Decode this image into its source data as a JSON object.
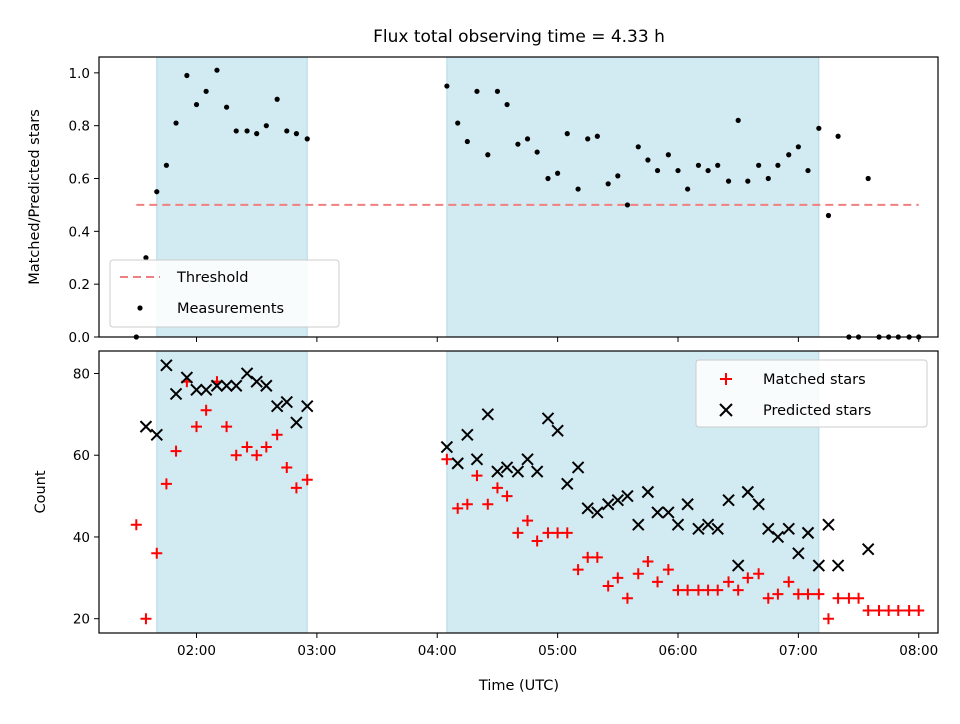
{
  "chart_data": {
    "title": "Flux total observing time = 4.33 h",
    "xlabel": "Time (UTC)",
    "x_ticks": [
      "02:00",
      "03:00",
      "04:00",
      "05:00",
      "06:00",
      "07:00",
      "08:00"
    ],
    "x_units": "hours UTC",
    "xlim": [
      1.19,
      8.16
    ],
    "observing_windows": [
      [
        1.67,
        2.92
      ],
      [
        4.08,
        7.17
      ]
    ],
    "window_color": "#add8e6",
    "panels": [
      {
        "type": "scatter",
        "ylabel": "Matched/Predicted stars",
        "ylim": [
          0.0,
          1.06
        ],
        "y_ticks": [
          0.0,
          0.2,
          0.4,
          0.6,
          0.8,
          1.0
        ],
        "y_tick_labels": [
          "0.0",
          "0.2",
          "0.4",
          "0.6",
          "0.8",
          "1.0"
        ],
        "threshold": {
          "name": "Threshold",
          "y": 0.5,
          "x_range": [
            1.5,
            8.0
          ],
          "color": "#f08080"
        },
        "series": [
          {
            "name": "Measurements",
            "color": "#000000",
            "marker": "dot",
            "points": [
              [
                1.5,
                0.0
              ],
              [
                1.58,
                0.3
              ],
              [
                1.67,
                0.55
              ],
              [
                1.75,
                0.65
              ],
              [
                1.83,
                0.81
              ],
              [
                1.92,
                0.99
              ],
              [
                2.0,
                0.88
              ],
              [
                2.08,
                0.93
              ],
              [
                2.17,
                1.01
              ],
              [
                2.25,
                0.87
              ],
              [
                2.33,
                0.78
              ],
              [
                2.42,
                0.78
              ],
              [
                2.5,
                0.77
              ],
              [
                2.58,
                0.8
              ],
              [
                2.67,
                0.9
              ],
              [
                2.75,
                0.78
              ],
              [
                2.83,
                0.77
              ],
              [
                2.92,
                0.75
              ],
              [
                4.08,
                0.95
              ],
              [
                4.17,
                0.81
              ],
              [
                4.25,
                0.74
              ],
              [
                4.33,
                0.93
              ],
              [
                4.42,
                0.69
              ],
              [
                4.5,
                0.93
              ],
              [
                4.58,
                0.88
              ],
              [
                4.67,
                0.73
              ],
              [
                4.75,
                0.75
              ],
              [
                4.83,
                0.7
              ],
              [
                4.92,
                0.6
              ],
              [
                5.0,
                0.62
              ],
              [
                5.08,
                0.77
              ],
              [
                5.17,
                0.56
              ],
              [
                5.25,
                0.75
              ],
              [
                5.33,
                0.76
              ],
              [
                5.42,
                0.58
              ],
              [
                5.5,
                0.61
              ],
              [
                5.58,
                0.5
              ],
              [
                5.67,
                0.72
              ],
              [
                5.75,
                0.67
              ],
              [
                5.83,
                0.63
              ],
              [
                5.92,
                0.69
              ],
              [
                6.0,
                0.63
              ],
              [
                6.08,
                0.56
              ],
              [
                6.17,
                0.65
              ],
              [
                6.25,
                0.63
              ],
              [
                6.33,
                0.65
              ],
              [
                6.42,
                0.59
              ],
              [
                6.5,
                0.82
              ],
              [
                6.58,
                0.59
              ],
              [
                6.67,
                0.65
              ],
              [
                6.75,
                0.6
              ],
              [
                6.83,
                0.65
              ],
              [
                6.92,
                0.69
              ],
              [
                7.0,
                0.72
              ],
              [
                7.08,
                0.63
              ],
              [
                7.17,
                0.79
              ],
              [
                7.25,
                0.46
              ],
              [
                7.33,
                0.76
              ],
              [
                7.42,
                0.0
              ],
              [
                7.5,
                0.0
              ],
              [
                7.58,
                0.6
              ],
              [
                7.67,
                0.0
              ],
              [
                7.75,
                0.0
              ],
              [
                7.83,
                0.0
              ],
              [
                7.92,
                0.0
              ],
              [
                8.0,
                0.0
              ]
            ]
          }
        ],
        "legend": {
          "placement": "lower-left",
          "entries": [
            "Threshold",
            "Measurements"
          ]
        }
      },
      {
        "type": "scatter",
        "ylabel": "Count",
        "ylim": [
          16.5,
          85.5
        ],
        "y_ticks": [
          20,
          40,
          60,
          80
        ],
        "y_tick_labels": [
          "20",
          "40",
          "60",
          "80"
        ],
        "series": [
          {
            "name": "Matched stars",
            "color": "#ff0000",
            "marker": "plus",
            "points": [
              [
                1.5,
                43
              ],
              [
                1.58,
                20
              ],
              [
                1.67,
                36
              ],
              [
                1.75,
                53
              ],
              [
                1.83,
                61
              ],
              [
                1.92,
                78
              ],
              [
                2.0,
                67
              ],
              [
                2.08,
                71
              ],
              [
                2.17,
                78
              ],
              [
                2.25,
                67
              ],
              [
                2.33,
                60
              ],
              [
                2.42,
                62
              ],
              [
                2.5,
                60
              ],
              [
                2.58,
                62
              ],
              [
                2.67,
                65
              ],
              [
                2.75,
                57
              ],
              [
                2.83,
                52
              ],
              [
                2.92,
                54
              ],
              [
                4.08,
                59
              ],
              [
                4.17,
                47
              ],
              [
                4.25,
                48
              ],
              [
                4.33,
                55
              ],
              [
                4.42,
                48
              ],
              [
                4.5,
                52
              ],
              [
                4.58,
                50
              ],
              [
                4.67,
                41
              ],
              [
                4.75,
                44
              ],
              [
                4.83,
                39
              ],
              [
                4.92,
                41
              ],
              [
                5.0,
                41
              ],
              [
                5.08,
                41
              ],
              [
                5.17,
                32
              ],
              [
                5.25,
                35
              ],
              [
                5.33,
                35
              ],
              [
                5.42,
                28
              ],
              [
                5.5,
                30
              ],
              [
                5.58,
                25
              ],
              [
                5.67,
                31
              ],
              [
                5.75,
                34
              ],
              [
                5.83,
                29
              ],
              [
                5.92,
                32
              ],
              [
                6.0,
                27
              ],
              [
                6.08,
                27
              ],
              [
                6.17,
                27
              ],
              [
                6.25,
                27
              ],
              [
                6.33,
                27
              ],
              [
                6.42,
                29
              ],
              [
                6.5,
                27
              ],
              [
                6.58,
                30
              ],
              [
                6.67,
                31
              ],
              [
                6.75,
                25
              ],
              [
                6.83,
                26
              ],
              [
                6.92,
                29
              ],
              [
                7.0,
                26
              ],
              [
                7.08,
                26
              ],
              [
                7.17,
                26
              ],
              [
                7.25,
                20
              ],
              [
                7.33,
                25
              ],
              [
                7.42,
                25
              ],
              [
                7.5,
                25
              ],
              [
                7.58,
                22
              ],
              [
                7.67,
                22
              ],
              [
                7.75,
                22
              ],
              [
                7.83,
                22
              ],
              [
                7.92,
                22
              ],
              [
                8.0,
                22
              ]
            ]
          },
          {
            "name": "Predicted stars",
            "color": "#000000",
            "marker": "x",
            "points": [
              [
                1.58,
                67
              ],
              [
                1.67,
                65
              ],
              [
                1.75,
                82
              ],
              [
                1.83,
                75
              ],
              [
                1.92,
                79
              ],
              [
                2.0,
                76
              ],
              [
                2.08,
                76
              ],
              [
                2.17,
                77
              ],
              [
                2.25,
                77
              ],
              [
                2.33,
                77
              ],
              [
                2.42,
                80
              ],
              [
                2.5,
                78
              ],
              [
                2.58,
                77
              ],
              [
                2.67,
                72
              ],
              [
                2.75,
                73
              ],
              [
                2.83,
                68
              ],
              [
                2.92,
                72
              ],
              [
                4.08,
                62
              ],
              [
                4.17,
                58
              ],
              [
                4.25,
                65
              ],
              [
                4.33,
                59
              ],
              [
                4.42,
                70
              ],
              [
                4.5,
                56
              ],
              [
                4.58,
                57
              ],
              [
                4.67,
                56
              ],
              [
                4.75,
                59
              ],
              [
                4.83,
                56
              ],
              [
                4.92,
                69
              ],
              [
                5.0,
                66
              ],
              [
                5.08,
                53
              ],
              [
                5.17,
                57
              ],
              [
                5.25,
                47
              ],
              [
                5.33,
                46
              ],
              [
                5.42,
                48
              ],
              [
                5.5,
                49
              ],
              [
                5.58,
                50
              ],
              [
                5.67,
                43
              ],
              [
                5.75,
                51
              ],
              [
                5.83,
                46
              ],
              [
                5.92,
                46
              ],
              [
                6.0,
                43
              ],
              [
                6.08,
                48
              ],
              [
                6.17,
                42
              ],
              [
                6.25,
                43
              ],
              [
                6.33,
                42
              ],
              [
                6.42,
                49
              ],
              [
                6.5,
                33
              ],
              [
                6.58,
                51
              ],
              [
                6.67,
                48
              ],
              [
                6.75,
                42
              ],
              [
                6.83,
                40
              ],
              [
                6.92,
                42
              ],
              [
                7.0,
                36
              ],
              [
                7.08,
                41
              ],
              [
                7.17,
                33
              ],
              [
                7.25,
                43
              ],
              [
                7.33,
                33
              ],
              [
                7.58,
                37
              ]
            ]
          }
        ],
        "legend": {
          "placement": "upper-right",
          "entries": [
            "Matched stars",
            "Predicted stars"
          ]
        }
      }
    ]
  }
}
